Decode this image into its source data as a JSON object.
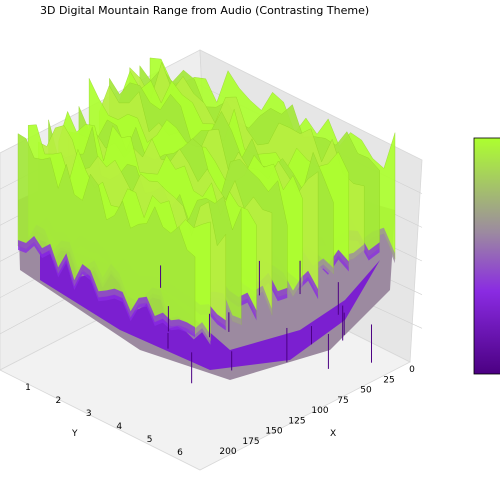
{
  "chart_data": {
    "type": "surface3d",
    "title": "3D Digital Mountain Range from Audio (Contrasting Theme)",
    "xlabel": "X",
    "ylabel": "Y",
    "zlabel": "",
    "x_ticks": [
      "0",
      "25",
      "50",
      "75",
      "100",
      "125",
      "150",
      "175",
      "200"
    ],
    "y_ticks": [
      "1",
      "2",
      "3",
      "4",
      "5",
      "6"
    ],
    "xlim": [
      0,
      200
    ],
    "ylim": [
      0,
      6
    ],
    "colormap": [
      "#4b0082",
      "#8a2be2",
      "#9c8aa0",
      "#adff2f"
    ],
    "colorbar": true,
    "grid": true
  }
}
